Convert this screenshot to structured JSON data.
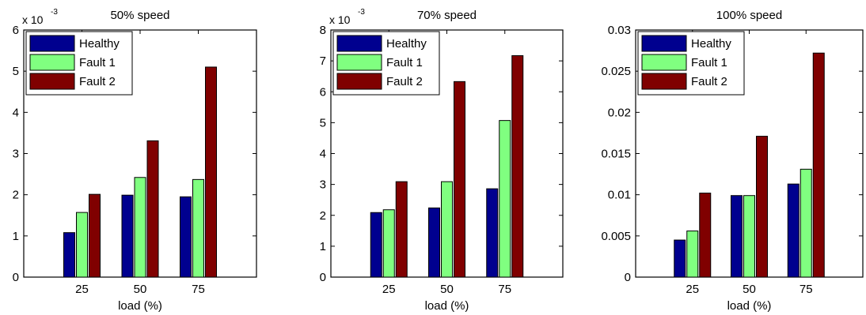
{
  "colors": {
    "healthy": "#00008f",
    "fault1": "#80ff80",
    "fault2": "#800000",
    "axis": "#000000"
  },
  "chart_data": [
    {
      "type": "bar",
      "title": "50% speed",
      "xlabel": "load (%)",
      "ylabel": "",
      "exponent_label": "x 10",
      "exponent_power": "-3",
      "categories": [
        "25",
        "50",
        "75"
      ],
      "xlim": [
        0,
        4
      ],
      "ylim": [
        0,
        6
      ],
      "yticks": [
        0,
        1,
        2,
        3,
        4,
        5,
        6
      ],
      "ytick_labels": [
        "0",
        "1",
        "2",
        "3",
        "4",
        "5",
        "6"
      ],
      "legend_position": "top-left",
      "series": [
        {
          "name": "Healthy",
          "values": [
            1.08,
            1.99,
            1.95
          ]
        },
        {
          "name": "Fault 1",
          "values": [
            1.57,
            2.42,
            2.37
          ]
        },
        {
          "name": "Fault 2",
          "values": [
            2.01,
            3.31,
            5.1
          ]
        }
      ]
    },
    {
      "type": "bar",
      "title": "70% speed",
      "xlabel": "load (%)",
      "ylabel": "",
      "exponent_label": "x 10",
      "exponent_power": "-3",
      "categories": [
        "25",
        "50",
        "75"
      ],
      "xlim": [
        0,
        4
      ],
      "ylim": [
        0,
        8
      ],
      "yticks": [
        0,
        1,
        2,
        3,
        4,
        5,
        6,
        7,
        8
      ],
      "ytick_labels": [
        "0",
        "1",
        "2",
        "3",
        "4",
        "5",
        "6",
        "7",
        "8"
      ],
      "legend_position": "top-left",
      "series": [
        {
          "name": "Healthy",
          "values": [
            2.09,
            2.24,
            2.86
          ]
        },
        {
          "name": "Fault 1",
          "values": [
            2.18,
            3.09,
            5.07
          ]
        },
        {
          "name": "Fault 2",
          "values": [
            3.09,
            6.33,
            7.17
          ]
        }
      ]
    },
    {
      "type": "bar",
      "title": "100% speed",
      "xlabel": "load (%)",
      "ylabel": "",
      "exponent_label": "",
      "exponent_power": "",
      "categories": [
        "25",
        "50",
        "75"
      ],
      "xlim": [
        0,
        4
      ],
      "ylim": [
        0,
        0.03
      ],
      "yticks": [
        0,
        0.005,
        0.01,
        0.015,
        0.02,
        0.025,
        0.03
      ],
      "ytick_labels": [
        "0",
        "0.005",
        "0.01",
        "0.015",
        "0.02",
        "0.025",
        "0.03"
      ],
      "legend_position": "top-left",
      "series": [
        {
          "name": "Healthy",
          "values": [
            0.0045,
            0.0099,
            0.0113
          ]
        },
        {
          "name": "Fault 1",
          "values": [
            0.0056,
            0.0099,
            0.0131
          ]
        },
        {
          "name": "Fault 2",
          "values": [
            0.0102,
            0.0171,
            0.0272
          ]
        }
      ]
    }
  ]
}
